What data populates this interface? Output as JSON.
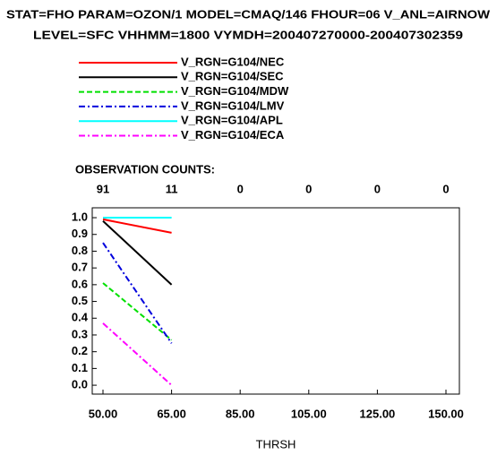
{
  "chart_data": {
    "type": "line",
    "title_lines": [
      "STAT=FHO PARAM=OZON/1 MODEL=CMAQ/146 FHOUR=06 V_ANL=AIRNOW",
      "LEVEL=SFC VHHMM=1800 VYMDH=200407270000-200407302359"
    ],
    "x_label": "THRSH",
    "categories": [
      "50.00",
      "65.00",
      "85.00",
      "105.00",
      "125.00",
      "150.00"
    ],
    "observation_counts": {
      "label": "OBSERVATION COUNTS:",
      "values": [
        91,
        11,
        0,
        0,
        0,
        0
      ]
    },
    "series": [
      {
        "name": "V_RGN=G104/NEC",
        "color": "#ff0000",
        "style": "solid",
        "values": [
          0.99,
          0.91,
          null,
          null,
          null,
          null
        ]
      },
      {
        "name": "V_RGN=G104/SEC",
        "color": "#000000",
        "style": "solid",
        "values": [
          0.98,
          0.6,
          null,
          null,
          null,
          null
        ]
      },
      {
        "name": "V_RGN=G104/MDW",
        "color": "#00e000",
        "style": "dashed",
        "values": [
          0.61,
          0.27,
          null,
          null,
          null,
          null
        ]
      },
      {
        "name": "V_RGN=G104/LMV",
        "color": "#0000dd",
        "style": "dashdot",
        "values": [
          0.85,
          0.25,
          null,
          null,
          null,
          null
        ]
      },
      {
        "name": "V_RGN=G104/APL",
        "color": "#00ffff",
        "style": "solid",
        "values": [
          1.0,
          1.0,
          null,
          null,
          null,
          null
        ]
      },
      {
        "name": "V_RGN=G104/ECA",
        "color": "#ff00ff",
        "style": "dashdot",
        "values": [
          0.37,
          0.0,
          null,
          null,
          null,
          null
        ]
      }
    ],
    "ylim": [
      -0.053,
      1.059
    ],
    "yticks": [
      {
        "value": 0,
        "label": "0.0"
      },
      {
        "value": 0.1,
        "label": "0.1"
      },
      {
        "value": 0.2,
        "label": "0.2"
      },
      {
        "value": 0.3,
        "label": "0.3"
      },
      {
        "value": 0.4,
        "label": "0.4"
      },
      {
        "value": 0.5,
        "label": "0.5"
      },
      {
        "value": 0.6,
        "label": "0.6"
      },
      {
        "value": 0.7,
        "label": "0.7"
      },
      {
        "value": 0.8,
        "label": "0.8"
      },
      {
        "value": 0.9,
        "label": "0.9"
      },
      {
        "value": 1,
        "label": "1.0"
      }
    ]
  }
}
